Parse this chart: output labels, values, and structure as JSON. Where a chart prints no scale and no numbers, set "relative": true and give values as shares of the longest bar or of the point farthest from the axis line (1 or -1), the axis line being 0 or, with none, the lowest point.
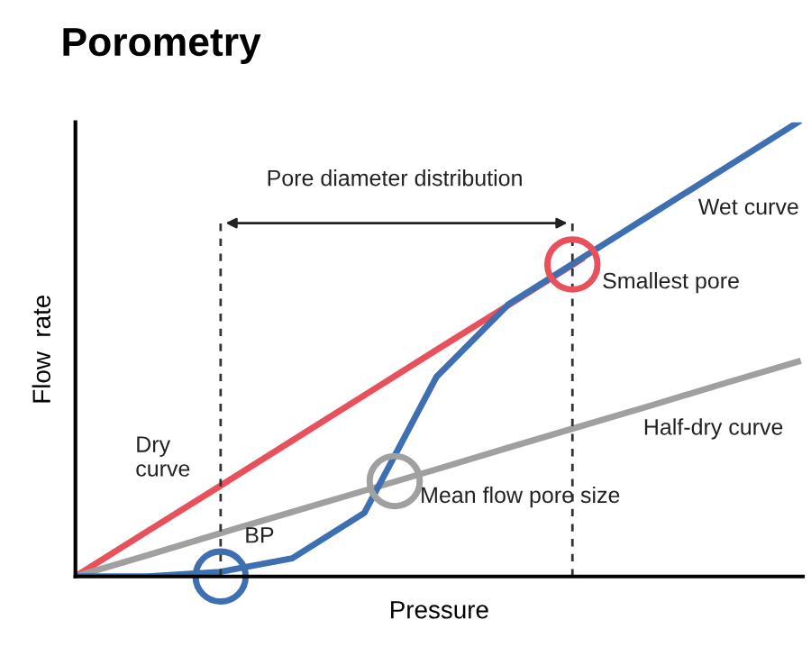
{
  "chart_data": {
    "type": "line",
    "title": "Porometry",
    "xlabel": "Pressure",
    "ylabel": "Flow  rate",
    "relative": true,
    "categories": [
      null,
      null,
      null,
      null,
      null,
      null,
      null,
      null,
      null,
      null,
      null
    ],
    "series": [
      {
        "name": "Dry\ncurve",
        "color": "#e8505b",
        "values": [
          0,
          0.1,
          0.199,
          0.299,
          0.399,
          0.499,
          0.598,
          0.698,
          null,
          null,
          null
        ]
      },
      {
        "name": "Half-dry curve",
        "color": "#a0a0a0",
        "values": [
          0,
          0.047,
          0.095,
          0.142,
          0.189,
          0.236,
          0.284,
          0.331,
          0.378,
          0.426,
          0.473
        ]
      },
      {
        "name": "Wet curve",
        "color": "#3e6fb0",
        "values": [
          0,
          0,
          0.01,
          0.04,
          0.14,
          0.44,
          0.6,
          0.7,
          0.8,
          0.9,
          1.0
        ]
      }
    ],
    "annotations": [
      "Pore diameter distribution",
      "Smallest pore",
      "Mean flow pore size",
      "BP"
    ],
    "grid": false,
    "legend": false,
    "marker": "none",
    "line_style": "solid"
  }
}
